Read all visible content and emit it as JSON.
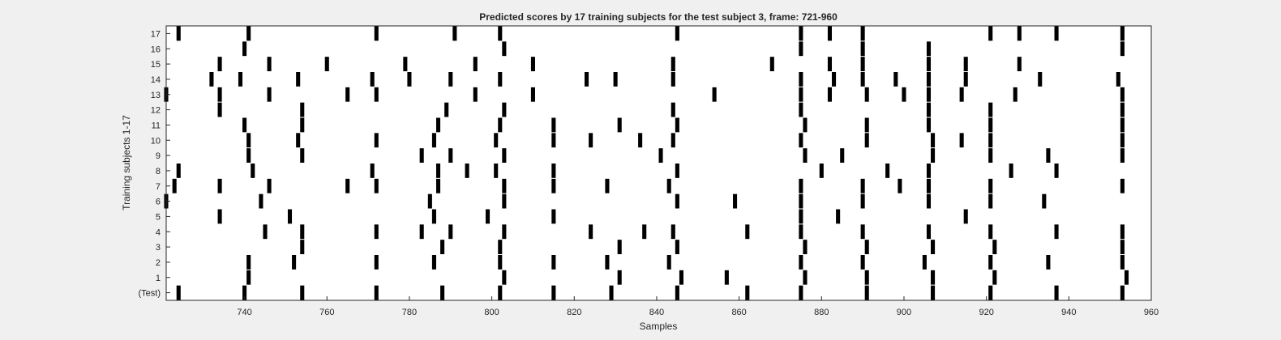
{
  "chart_data": {
    "type": "heatmap",
    "title": "Predicted scores by 17 training subjects for the test subject 3, frame: 721-960",
    "xlabel": "Samples",
    "ylabel": "Training subjects 1-17",
    "xlim": [
      721,
      960
    ],
    "x_ticks": [
      740,
      760,
      780,
      800,
      820,
      840,
      860,
      880,
      900,
      920,
      940,
      960
    ],
    "grid": false,
    "colors": {
      "mark": "#000000",
      "background": "#ffffff",
      "figure": "#f0f0f0"
    },
    "rows": [
      {
        "label": "(Test)",
        "x": [
          724,
          740,
          754,
          772,
          788,
          802,
          815,
          829,
          845,
          862,
          875,
          891,
          907,
          921,
          937,
          953
        ]
      },
      {
        "label": "1",
        "x": [
          741,
          803,
          831,
          846,
          857,
          876,
          891,
          907,
          922,
          954
        ]
      },
      {
        "label": "2",
        "x": [
          741,
          752,
          772,
          786,
          802,
          815,
          828,
          843,
          875,
          890,
          905,
          921,
          935,
          953
        ]
      },
      {
        "label": "3",
        "x": [
          754,
          788,
          802,
          831,
          845,
          876,
          891,
          907,
          922,
          953
        ]
      },
      {
        "label": "4",
        "x": [
          745,
          754,
          772,
          783,
          790,
          803,
          824,
          837,
          844,
          862,
          875,
          890,
          906,
          921,
          937,
          953
        ]
      },
      {
        "label": "5",
        "x": [
          734,
          751,
          786,
          799,
          815,
          875,
          884,
          915
        ]
      },
      {
        "label": "6",
        "x": [
          721,
          744,
          785,
          803,
          845,
          859,
          875,
          890,
          906,
          921,
          934
        ]
      },
      {
        "label": "7",
        "x": [
          723,
          734,
          746,
          765,
          772,
          787,
          803,
          815,
          828,
          843,
          875,
          890,
          899,
          906,
          921,
          953
        ]
      },
      {
        "label": "8",
        "x": [
          724,
          742,
          771,
          787,
          794,
          801,
          815,
          845,
          880,
          896,
          906,
          926,
          937
        ]
      },
      {
        "label": "9",
        "x": [
          741,
          754,
          783,
          790,
          803,
          841,
          876,
          885,
          907,
          921,
          935,
          953
        ]
      },
      {
        "label": "10",
        "x": [
          741,
          753,
          772,
          786,
          801,
          815,
          824,
          836,
          844,
          875,
          891,
          907,
          914,
          921,
          953
        ]
      },
      {
        "label": "11",
        "x": [
          740,
          754,
          787,
          802,
          815,
          831,
          845,
          876,
          891,
          906,
          921,
          953
        ]
      },
      {
        "label": "12",
        "x": [
          734,
          754,
          789,
          803,
          844,
          875,
          906,
          921,
          953
        ]
      },
      {
        "label": "13",
        "x": [
          721,
          734,
          746,
          765,
          772,
          796,
          810,
          854,
          875,
          882,
          891,
          900,
          906,
          914,
          927,
          953
        ]
      },
      {
        "label": "14",
        "x": [
          732,
          739,
          753,
          771,
          780,
          790,
          802,
          823,
          830,
          844,
          875,
          883,
          890,
          898,
          906,
          915,
          933,
          952
        ]
      },
      {
        "label": "15",
        "x": [
          734,
          746,
          760,
          779,
          796,
          810,
          844,
          868,
          882,
          890,
          906,
          915,
          928
        ]
      },
      {
        "label": "16",
        "x": [
          740,
          803,
          875,
          890,
          906,
          953
        ]
      },
      {
        "label": "17",
        "x": [
          724,
          741,
          772,
          791,
          802,
          845,
          875,
          882,
          890,
          921,
          928,
          937,
          953
        ]
      }
    ]
  }
}
